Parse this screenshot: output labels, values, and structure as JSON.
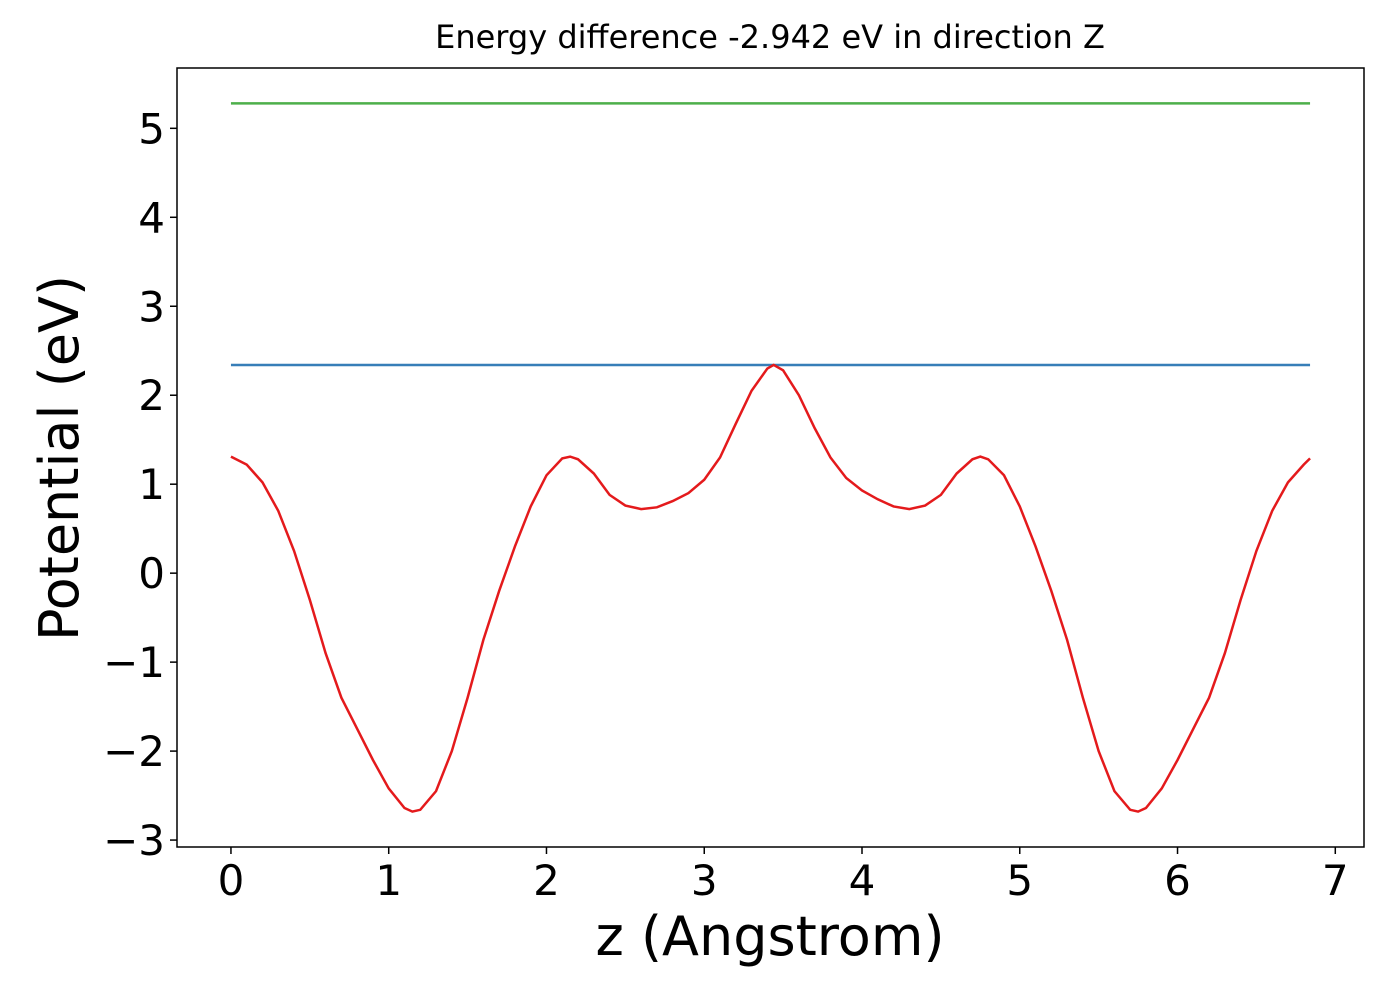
{
  "chart_data": {
    "type": "line",
    "title": "Energy difference -2.942 eV in direction Z",
    "x_label": "z (Angstrom)",
    "y_label": "Potential (eV)",
    "xlim": [
      -0.342,
      7.182
    ],
    "ylim": [
      -3.078,
      5.678
    ],
    "xticks": [
      0,
      1,
      2,
      3,
      4,
      5,
      6,
      7
    ],
    "yticks": [
      {
        "value": -3,
        "label": "−3"
      },
      {
        "value": -2,
        "label": "−2"
      },
      {
        "value": -1,
        "label": "−1"
      },
      0,
      1,
      2,
      3,
      4,
      5
    ],
    "series": [
      {
        "color": "#377eb8",
        "x": [
          0,
          6.84
        ],
        "values": [
          2.34,
          2.34
        ]
      },
      {
        "color": "#4daf4a",
        "x": [
          0,
          6.84
        ],
        "values": [
          5.28,
          5.28
        ]
      },
      {
        "color": "#e41a1c",
        "x": [
          0,
          0.1,
          0.2,
          0.3,
          0.4,
          0.5,
          0.6,
          0.7,
          0.8,
          0.9,
          1.0,
          1.1,
          1.15,
          1.2,
          1.3,
          1.4,
          1.5,
          1.6,
          1.7,
          1.8,
          1.9,
          2.0,
          2.1,
          2.15,
          2.2,
          2.3,
          2.4,
          2.5,
          2.6,
          2.7,
          2.8,
          2.9,
          3.0,
          3.1,
          3.2,
          3.3,
          3.4,
          3.44,
          3.5,
          3.6,
          3.7,
          3.8,
          3.9,
          4.0,
          4.1,
          4.2,
          4.3,
          4.4,
          4.5,
          4.6,
          4.7,
          4.75,
          4.8,
          4.9,
          5.0,
          5.1,
          5.2,
          5.3,
          5.4,
          5.5,
          5.6,
          5.7,
          5.75,
          5.8,
          5.9,
          6.0,
          6.1,
          6.2,
          6.3,
          6.4,
          6.5,
          6.6,
          6.7,
          6.8,
          6.84
        ],
        "values": [
          1.31,
          1.22,
          1.02,
          0.7,
          0.25,
          -0.3,
          -0.9,
          -1.4,
          -1.75,
          -2.1,
          -2.42,
          -2.64,
          -2.68,
          -2.66,
          -2.45,
          -2.0,
          -1.4,
          -0.75,
          -0.2,
          0.3,
          0.75,
          1.1,
          1.29,
          1.31,
          1.28,
          1.12,
          0.88,
          0.76,
          0.72,
          0.74,
          0.81,
          0.9,
          1.05,
          1.3,
          1.68,
          2.05,
          2.3,
          2.34,
          2.28,
          2.0,
          1.63,
          1.3,
          1.07,
          0.93,
          0.83,
          0.75,
          0.72,
          0.76,
          0.88,
          1.12,
          1.28,
          1.31,
          1.28,
          1.1,
          0.75,
          0.3,
          -0.2,
          -0.75,
          -1.4,
          -2.0,
          -2.45,
          -2.66,
          -2.68,
          -2.64,
          -2.42,
          -2.1,
          -1.75,
          -1.4,
          -0.9,
          -0.3,
          0.25,
          0.7,
          1.02,
          1.22,
          1.29
        ]
      }
    ]
  }
}
